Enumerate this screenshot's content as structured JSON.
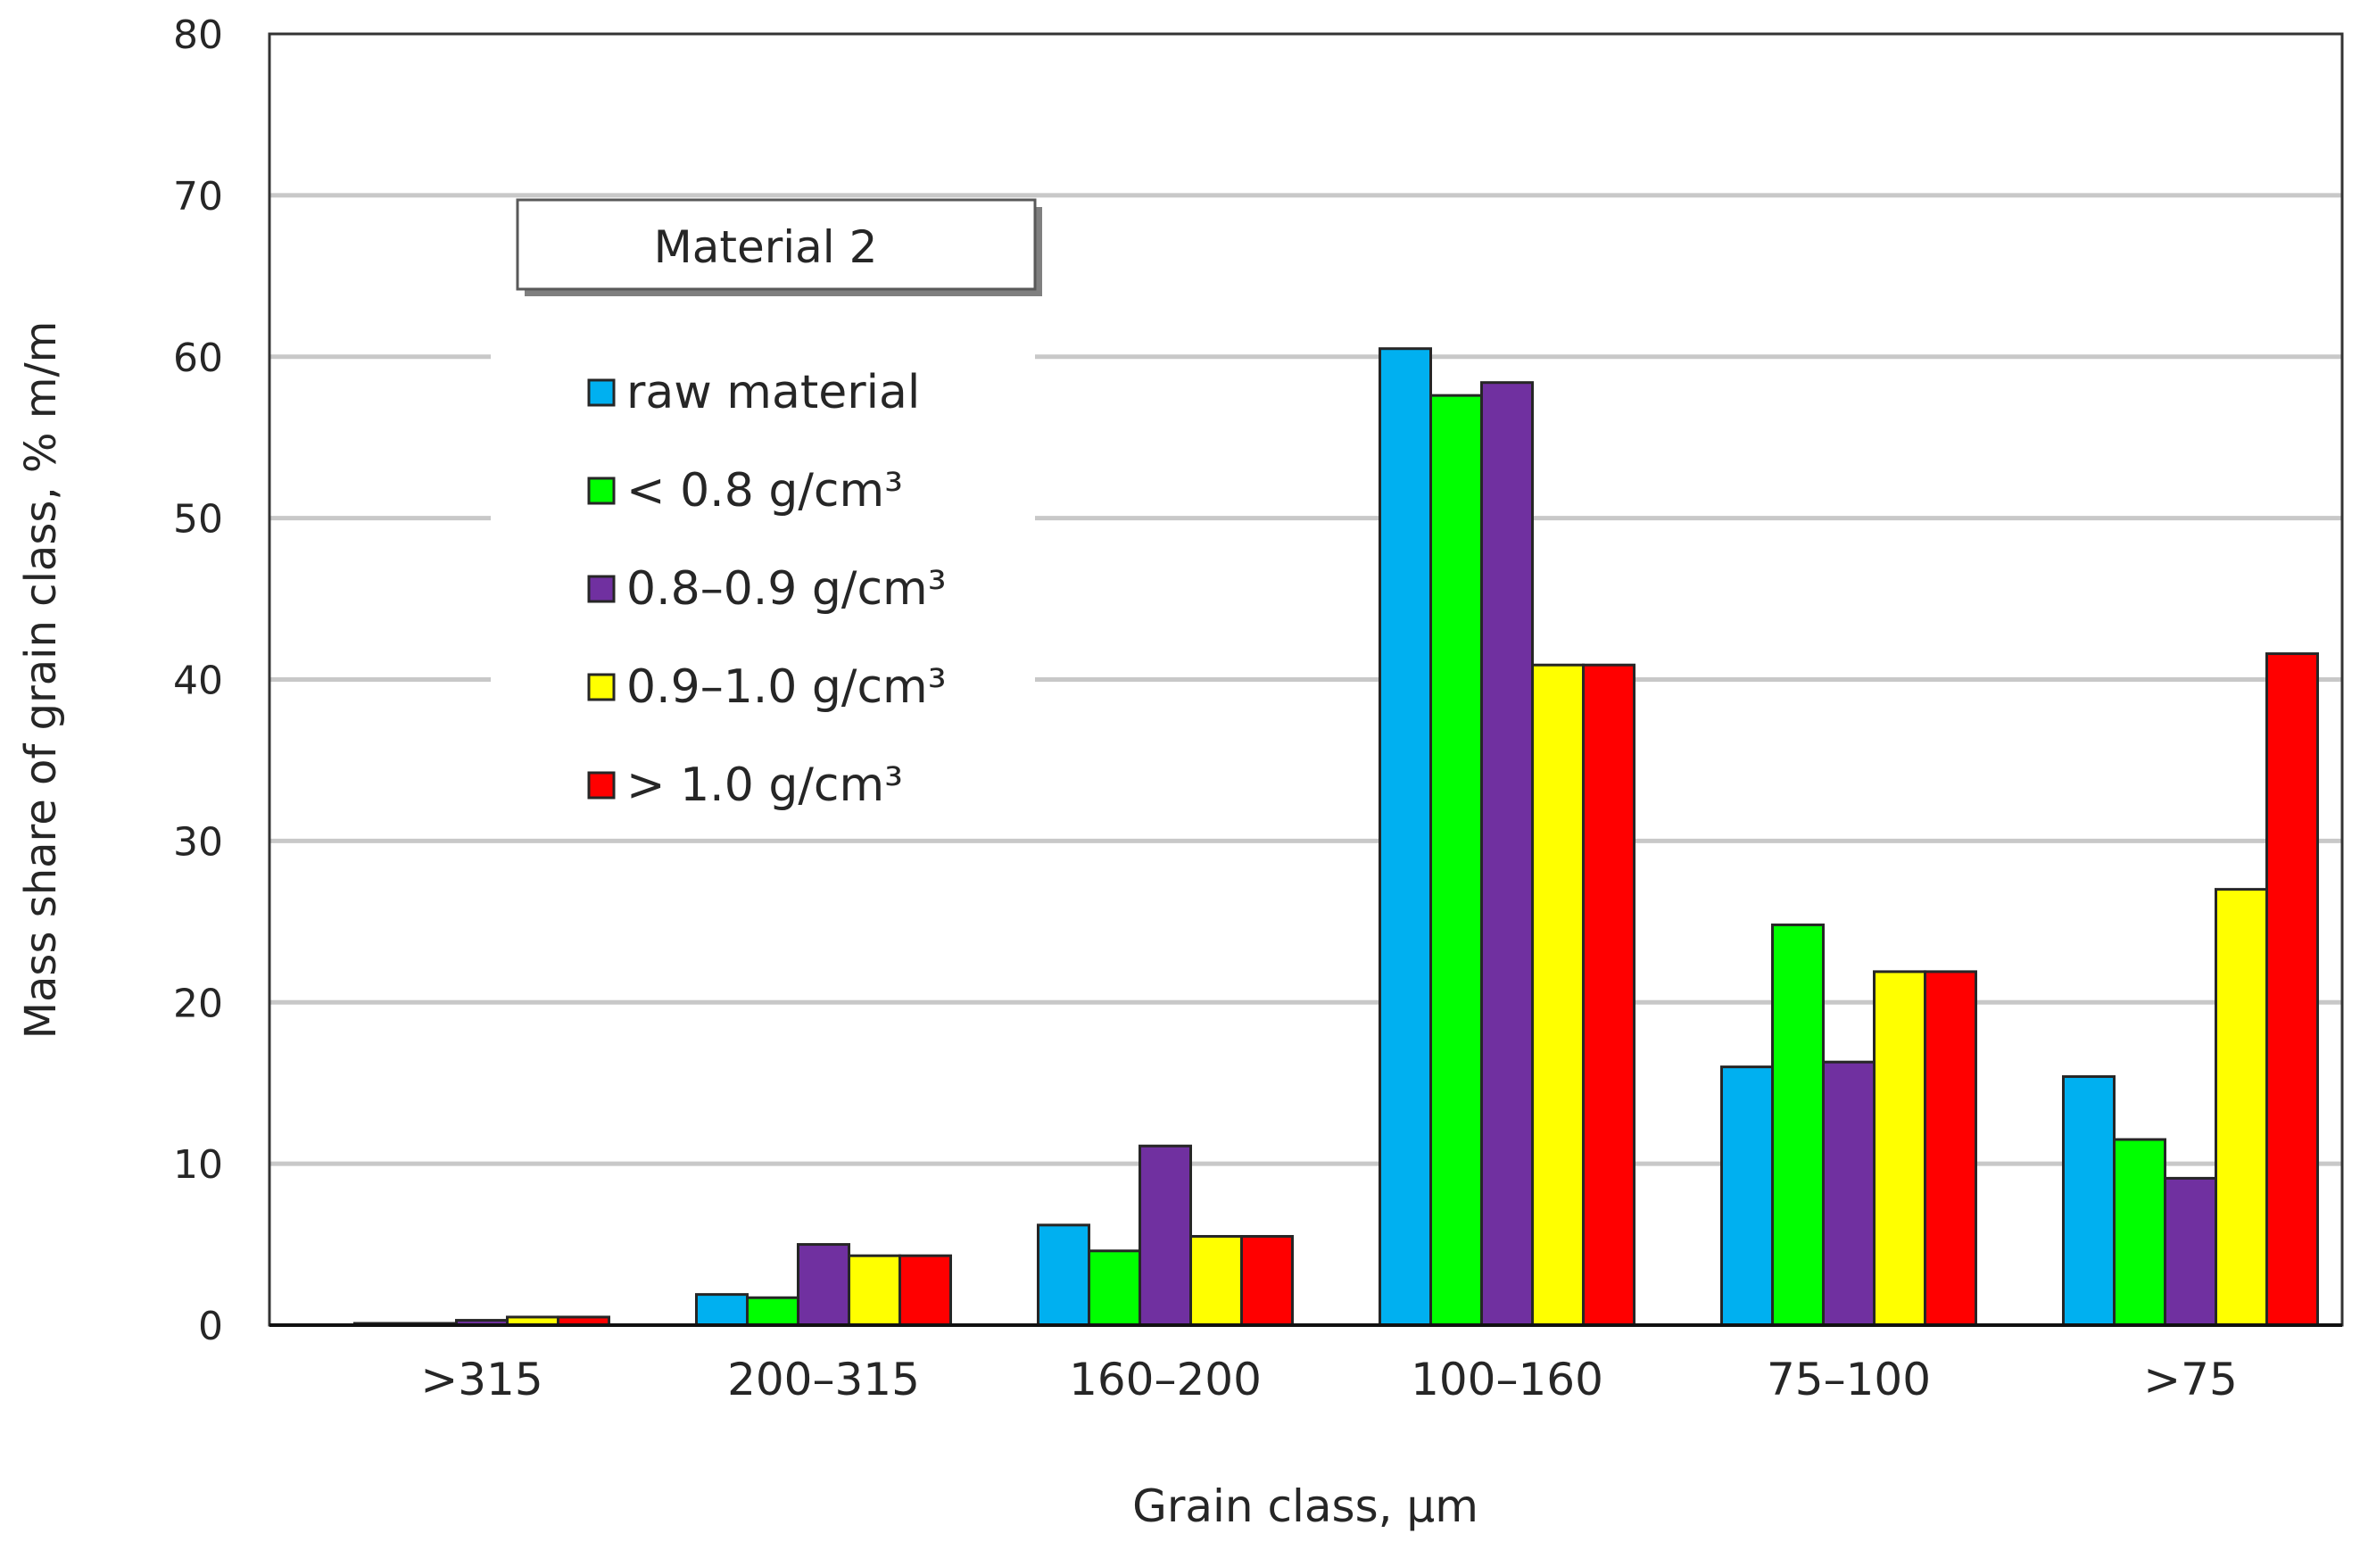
{
  "chart_data": {
    "type": "bar",
    "title": "Material 2",
    "xlabel": "Grain class, µm",
    "ylabel": "Mass share of grain class, % m/m",
    "ylim": [
      0,
      80
    ],
    "yticks": [
      0,
      10,
      20,
      30,
      40,
      50,
      60,
      70,
      80
    ],
    "grid": true,
    "legend_position": "top-left",
    "categories": [
      ">315",
      "200–315",
      "160–200",
      "100–160",
      "75–100",
      ">75"
    ],
    "series": [
      {
        "name": "raw material",
        "color": "#00b0f0",
        "values": [
          0.1,
          1.9,
          6.2,
          60.5,
          16.0,
          15.4
        ]
      },
      {
        "name": "< 0.8 g/cm³",
        "color": "#00ff00",
        "values": [
          0.1,
          1.7,
          4.6,
          57.6,
          24.8,
          11.5
        ]
      },
      {
        "name": "0.8–0.9 g/cm³",
        "color": "#7030a0",
        "values": [
          0.3,
          5.0,
          11.1,
          58.4,
          16.3,
          9.1
        ]
      },
      {
        "name": "0.9–1.0 g/cm³",
        "color": "#ffff00",
        "values": [
          0.5,
          4.3,
          5.5,
          40.9,
          21.9,
          27.0
        ]
      },
      {
        "name": "> 1.0 g/cm³",
        "color": "#ff0000",
        "values": [
          0.5,
          4.3,
          5.5,
          40.9,
          21.9,
          41.6
        ]
      }
    ]
  }
}
